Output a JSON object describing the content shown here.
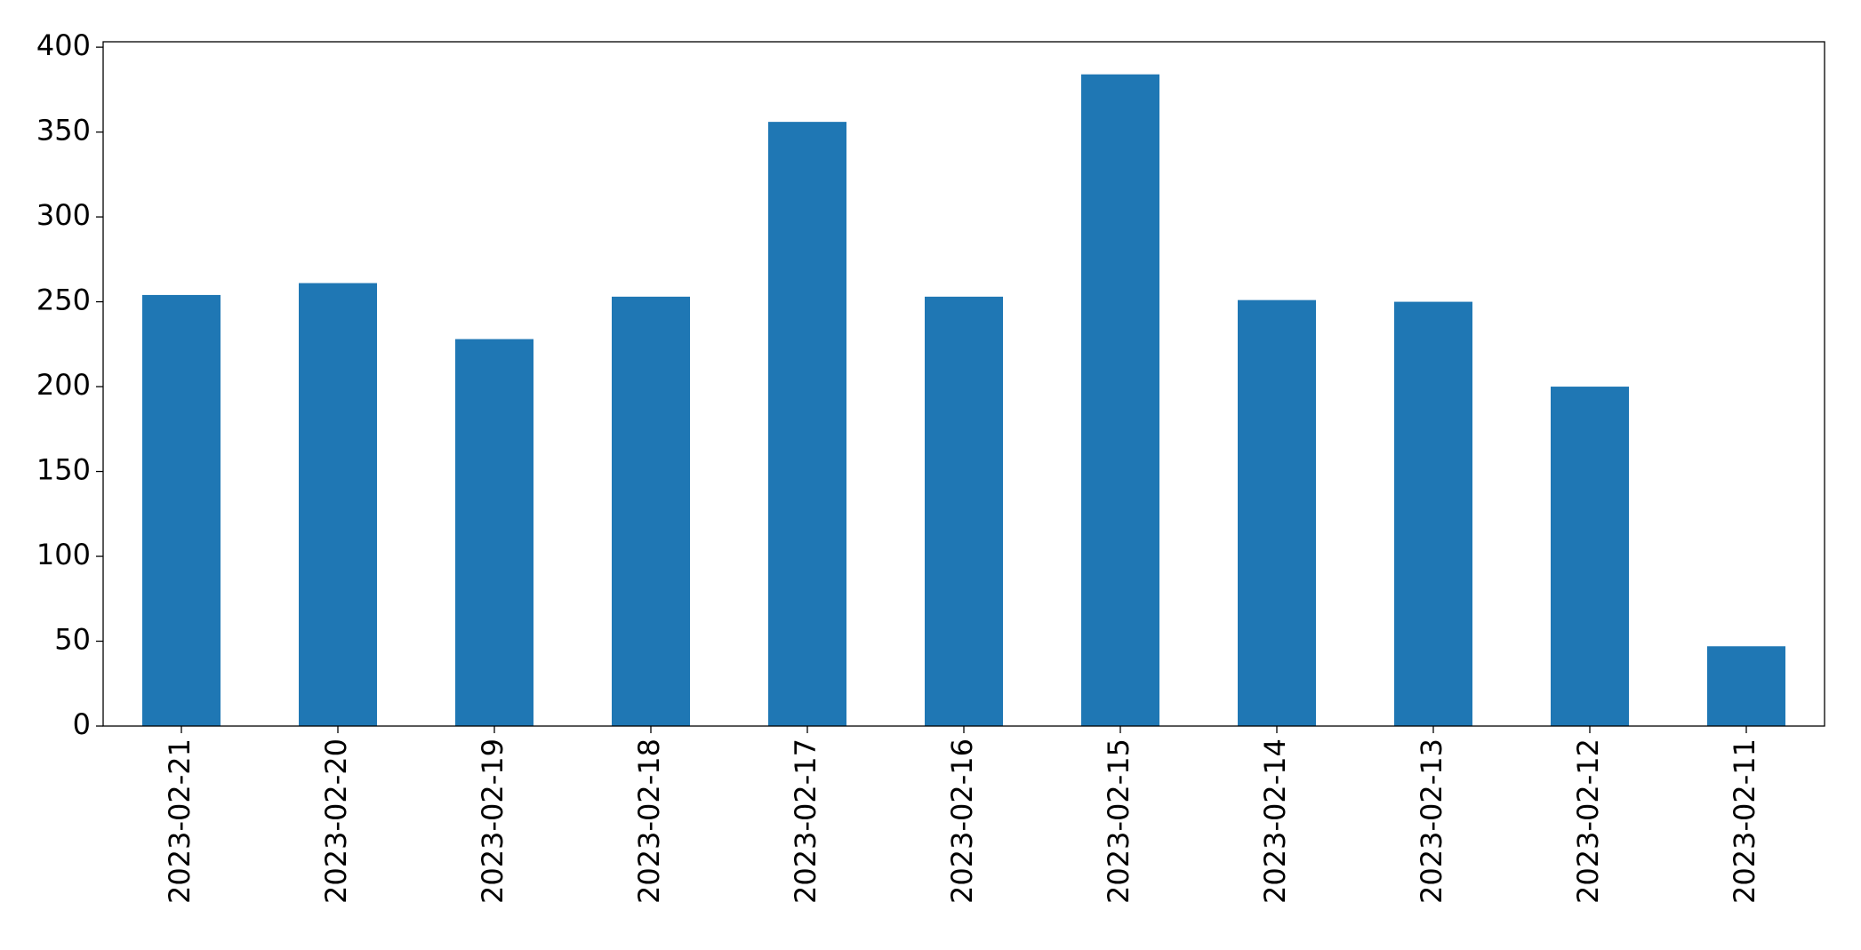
{
  "chart_data": {
    "type": "bar",
    "categories": [
      "2023-02-21",
      "2023-02-20",
      "2023-02-19",
      "2023-02-18",
      "2023-02-17",
      "2023-02-16",
      "2023-02-15",
      "2023-02-14",
      "2023-02-13",
      "2023-02-12",
      "2023-02-11"
    ],
    "values": [
      254,
      261,
      228,
      253,
      356,
      253,
      384,
      251,
      250,
      200,
      47
    ],
    "color": "#1f77b4",
    "ylim": [
      0,
      403.2
    ],
    "yticks": [
      0,
      50,
      100,
      150,
      200,
      250,
      300,
      350,
      400
    ],
    "grid": false
  }
}
